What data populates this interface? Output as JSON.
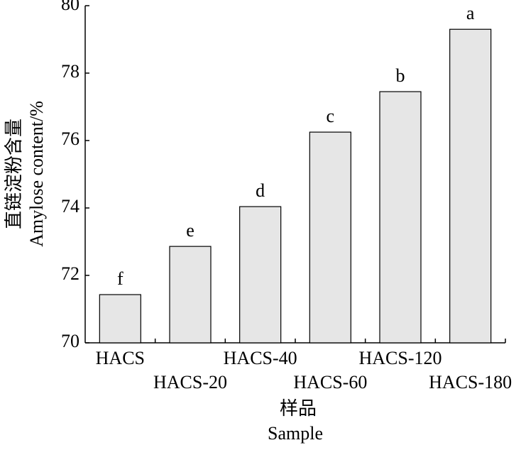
{
  "chart_data": {
    "type": "bar",
    "x_label": [
      "样品",
      "Sample"
    ],
    "y_label": [
      "直链淀粉含量",
      "Amylose content/%"
    ],
    "categories": [
      "HACS",
      "HACS-20",
      "HACS-40",
      "HACS-60",
      "HACS-120",
      "HACS-180"
    ],
    "values": [
      71.43,
      72.86,
      74.04,
      76.25,
      77.45,
      79.3
    ],
    "annotations": [
      "f",
      "e",
      "d",
      "c",
      "b",
      "a"
    ],
    "color": "#e6e6e6",
    "ylim": [
      70,
      80
    ],
    "yticks": [
      70,
      72,
      74,
      76,
      78,
      80
    ],
    "grid": false
  }
}
